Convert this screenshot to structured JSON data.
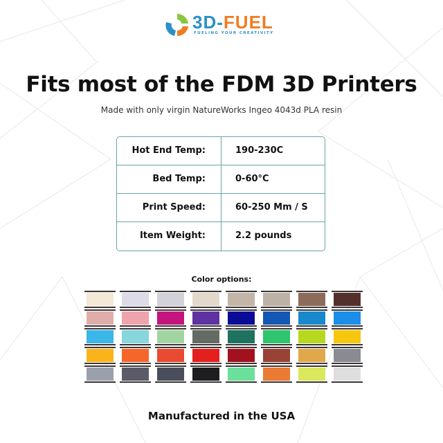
{
  "logo": {
    "brand_a": "3D-",
    "brand_b": "FUEL",
    "tagline": "FUELING YOUR CREATIVITY"
  },
  "title": "Fits most of the FDM 3D Printers",
  "subtitle": "Made with only virgin NatureWorks Ingeo 4043d PLA resin",
  "specs": [
    {
      "label": "Hot End Temp:",
      "value": "190-230C"
    },
    {
      "label": "Bed Temp:",
      "value": "0-60°C"
    },
    {
      "label": "Print Speed:",
      "value": "60-250 Mm / S"
    },
    {
      "label": "Item Weight:",
      "value": "2.2 pounds"
    }
  ],
  "colors_heading": "Color options:",
  "colors": [
    [
      "#f4e8d6",
      "#dcdbe6",
      "#d2d2d9",
      "#e3d9cb",
      "#c3b5a8",
      "#bcb3a6",
      "#8c6b5a",
      "#54302c"
    ],
    [
      "#dfadaa",
      "#eea3ad",
      "#c4157f",
      "#5e32a0",
      "#0a0c98",
      "#1457b4",
      "#1a88cc",
      "#1a8ee8"
    ],
    [
      "#3ab6e8",
      "#86d6dc",
      "#a2d4a2",
      "#646b64",
      "#1e7360",
      "#2fc46e",
      "#b6d81e",
      "#f7c60e"
    ],
    [
      "#fbb31c",
      "#f5662a",
      "#e84a32",
      "#e51e1e",
      "#a1121e",
      "#9a4236",
      "#e0a84a",
      "#8a8a92"
    ],
    [
      "#9aa0ac",
      "#5a5a68",
      "#4a4e5c",
      "#1e1e20",
      "#6ae09a",
      "#ea7a34",
      "#dae85c",
      "#dedede"
    ]
  ],
  "footer": "Manufactured  in the USA",
  "accent": "#6aa3a6"
}
